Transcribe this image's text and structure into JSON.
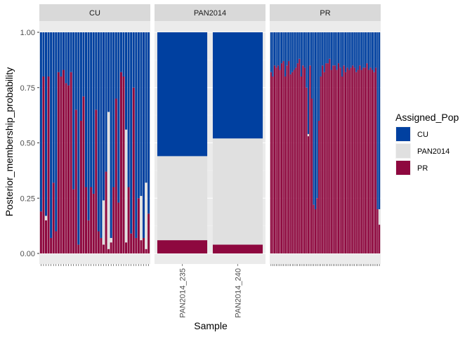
{
  "chart_data": {
    "type": "bar",
    "stacked": true,
    "ylabel": "Posterior_membership_probability",
    "xlabel": "Sample",
    "ylim": [
      0,
      1
    ],
    "y_ticks": [
      "0.00",
      "0.25",
      "0.50",
      "0.75",
      "1.00"
    ],
    "legend": {
      "title": "Assigned_Pop",
      "placement": "right",
      "entries": [
        {
          "label": "CU",
          "color": "#0040A0"
        },
        {
          "label": "PAN2014",
          "color": "#E0E0E0"
        },
        {
          "label": "PR",
          "color": "#8E083F"
        }
      ]
    },
    "stack_order_bottom_to_top": [
      "PR",
      "PAN2014",
      "CU"
    ],
    "panels": [
      {
        "label": "CU",
        "PR": [
          0.19,
          0.8,
          0.15,
          0.8,
          0.07,
          0.32,
          0.1,
          0.82,
          0.8,
          0.83,
          0.77,
          0.76,
          0.82,
          0.29,
          0.65,
          0.04,
          0.6,
          0.71,
          0.3,
          0.15,
          0.3,
          0.27,
          0.65,
          0.1,
          0.07,
          0.04,
          0.37,
          0.02,
          0.05,
          0.3,
          0.7,
          0.23,
          0.82,
          0.8,
          0.05,
          0.3,
          0.09,
          0.75,
          0.07,
          0.25,
          0.06,
          0.07,
          0.02,
          0.18
        ],
        "PAN2014": [
          0.0,
          0.0,
          0.02,
          0.0,
          0.0,
          0.0,
          0.0,
          0.0,
          0.0,
          0.0,
          0.0,
          0.0,
          0.0,
          0.0,
          0.0,
          0.0,
          0.0,
          0.0,
          0.0,
          0.0,
          0.0,
          0.0,
          0.0,
          0.0,
          0.0,
          0.2,
          0.0,
          0.62,
          0.02,
          0.0,
          0.0,
          0.0,
          0.0,
          0.0,
          0.51,
          0.0,
          0.0,
          0.0,
          0.0,
          0.0,
          0.2,
          0.0,
          0.3,
          0.0
        ]
      },
      {
        "label": "PAN2014",
        "samples": [
          "PAN2014_235",
          "PAN2014_240"
        ],
        "PR": [
          0.06,
          0.04
        ],
        "PAN2014": [
          0.38,
          0.48
        ]
      },
      {
        "label": "PR",
        "PR": [
          0.82,
          0.8,
          0.85,
          0.84,
          0.85,
          0.83,
          0.86,
          0.87,
          0.8,
          0.85,
          0.87,
          0.81,
          0.82,
          0.83,
          0.84,
          0.86,
          0.88,
          0.8,
          0.85,
          0.84,
          0.75,
          0.53,
          0.85,
          0.7,
          0.22,
          0.2,
          0.25,
          0.6,
          0.8,
          0.85,
          0.82,
          0.86,
          0.86,
          0.88,
          0.83,
          0.85,
          0.85,
          0.83,
          0.86,
          0.84,
          0.8,
          0.85,
          0.82,
          0.84,
          0.83,
          0.84,
          0.85,
          0.84,
          0.82,
          0.83,
          0.85,
          0.83,
          0.84,
          0.84,
          0.86,
          0.83,
          0.84,
          0.83,
          0.82,
          0.84,
          0.2,
          0.13
        ],
        "PAN2014": [
          0,
          0,
          0,
          0,
          0,
          0,
          0,
          0,
          0,
          0,
          0,
          0,
          0,
          0,
          0,
          0,
          0,
          0,
          0,
          0,
          0,
          0.01,
          0,
          0,
          0,
          0,
          0,
          0,
          0,
          0,
          0,
          0,
          0,
          0,
          0,
          0,
          0,
          0,
          0,
          0,
          0,
          0,
          0,
          0,
          0,
          0,
          0,
          0,
          0,
          0,
          0,
          0,
          0,
          0,
          0,
          0,
          0,
          0,
          0,
          0,
          0,
          0.07
        ]
      }
    ]
  }
}
